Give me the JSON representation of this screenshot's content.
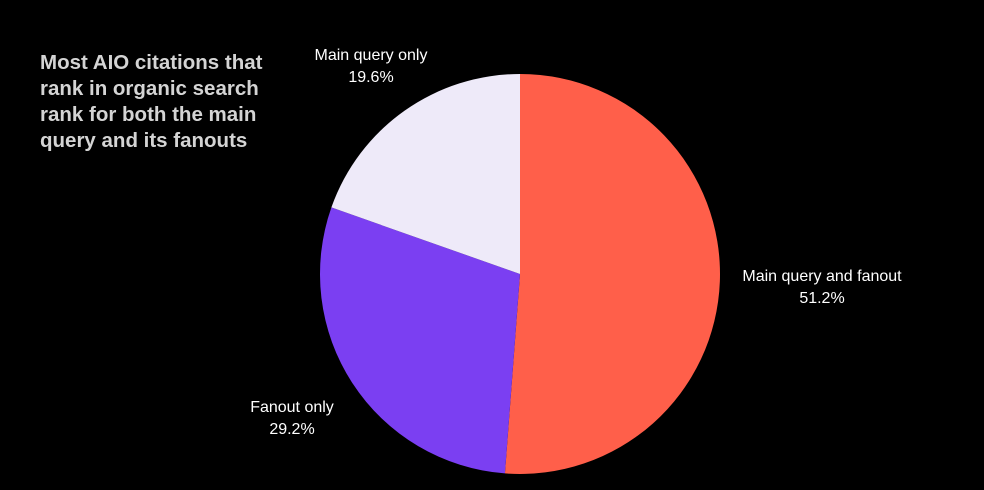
{
  "chart_data": {
    "type": "pie",
    "title": "Most AIO citations that rank in organic search rank for both the main query and its fanouts",
    "slices": [
      {
        "label": "Main query and fanout",
        "value": 51.2,
        "value_label": "51.2%",
        "color": "#ff5f4a"
      },
      {
        "label": "Fanout only",
        "value": 29.2,
        "value_label": "29.2%",
        "color": "#7b3ff2"
      },
      {
        "label": "Main query only",
        "value": 19.6,
        "value_label": "19.6%",
        "color": "#eeeaf9"
      }
    ],
    "start_angle": "12 o'clock",
    "direction": "clockwise",
    "legend": "none"
  }
}
